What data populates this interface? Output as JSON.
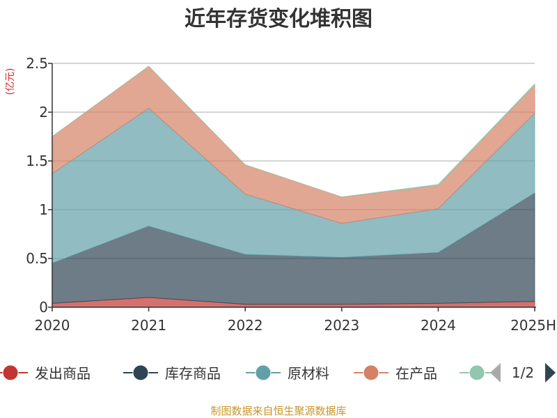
{
  "chart_data": {
    "type": "area",
    "stacked": true,
    "title": "近年存货变化堆积图",
    "unit_label": "亿元",
    "categories": [
      "2020",
      "2021",
      "2022",
      "2023",
      "2024",
      "2025H"
    ],
    "ylim": [
      0,
      2.5
    ],
    "yticks": [
      "0",
      "0.5",
      "1",
      "1.5",
      "2",
      "2.5"
    ],
    "grid": true,
    "legend_position": "bottom",
    "series": [
      {
        "name": "发出商品",
        "color": "#c23531",
        "values": [
          0.04,
          0.1,
          0.03,
          0.03,
          0.04,
          0.06
        ]
      },
      {
        "name": "库存商品",
        "color": "#2f4554",
        "values": [
          0.41,
          0.73,
          0.51,
          0.48,
          0.52,
          1.11
        ]
      },
      {
        "name": "原材料",
        "color": "#61a0a8",
        "values": [
          0.92,
          1.21,
          0.62,
          0.35,
          0.45,
          0.82
        ]
      },
      {
        "name": "在产品",
        "color": "#d48265",
        "values": [
          0.38,
          0.43,
          0.3,
          0.27,
          0.24,
          0.29
        ]
      },
      {
        "name": "",
        "color": "#91c7ae",
        "values": [
          0.0,
          0.0,
          0.0,
          0.0,
          0.01,
          0.01
        ]
      }
    ],
    "legend_page": "1/2",
    "source_note": "制图数据来自恒生聚源数据库"
  }
}
